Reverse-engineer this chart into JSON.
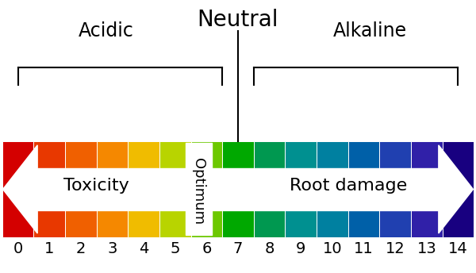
{
  "ph_colors": [
    "#d40000",
    "#e83800",
    "#f06000",
    "#f58800",
    "#f0bc00",
    "#b8d400",
    "#6cc800",
    "#00a800",
    "#009850",
    "#009090",
    "#0080a0",
    "#0060a8",
    "#2040b0",
    "#3020a8",
    "#180080"
  ],
  "ph_labels": [
    "0",
    "1",
    "2",
    "3",
    "4",
    "5",
    "6",
    "7",
    "8",
    "9",
    "10",
    "11",
    "12",
    "13",
    "14"
  ],
  "title_neutral": "Neutral",
  "label_acidic": "Acidic",
  "label_alkaline": "Alkaline",
  "label_toxicity": "Toxicity",
  "label_root_damage": "Root damage",
  "label_optimum": "Optimum",
  "background_color": "#ffffff",
  "text_color": "#000000",
  "arrow_color": "#ffffff",
  "optimum_box_color": "#ffffff",
  "bar_edge_color": "#ffffff",
  "neutral_fontsize": 20,
  "label_fontsize": 17,
  "tick_fontsize": 14,
  "arrow_fontsize": 16,
  "optimum_fontsize": 13
}
